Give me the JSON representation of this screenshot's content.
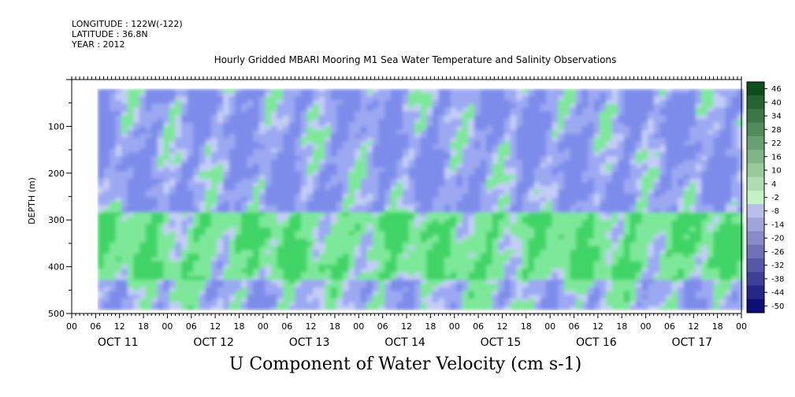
{
  "header": {
    "longitude": "LONGITUDE : 122W(-122)",
    "latitude": "LATITUDE : 36.8N",
    "year": "YEAR : 2012"
  },
  "chart_data": {
    "type": "heatmap",
    "title": "Hourly Gridded MBARI Mooring M1 Sea Water Temperature and Salinity Observations",
    "bottom_title": "U Component of Water Velocity (cm s-1)",
    "ylabel": "DEPTH (m)",
    "ylim": [
      500,
      0
    ],
    "y_ticks": [
      100,
      200,
      300,
      400,
      500
    ],
    "data_depth_range": [
      20,
      490
    ],
    "x_range_hours": [
      0,
      168
    ],
    "x_hour_labels": [
      "00",
      "06",
      "12",
      "18",
      "00",
      "06",
      "12",
      "18",
      "00",
      "06",
      "12",
      "18",
      "00",
      "06",
      "12",
      "18",
      "00",
      "06",
      "12",
      "18",
      "00",
      "06",
      "12",
      "18",
      "00",
      "06",
      "12",
      "18",
      "00"
    ],
    "day_labels": [
      "OCT 11",
      "OCT 12",
      "OCT 13",
      "OCT 14",
      "OCT 15",
      "OCT 16",
      "OCT 17"
    ],
    "colorbar": {
      "levels": [
        "46",
        "40",
        "34",
        "28",
        "22",
        "16",
        "10",
        "4",
        "-2",
        "-8",
        "-14",
        "-20",
        "-26",
        "-32",
        "-38",
        "-44",
        "-50"
      ],
      "min": -50,
      "max": 50
    },
    "pattern_summary": [
      {
        "depth_range": [
          20,
          280
        ],
        "sign": "negative",
        "value_cm_s": -10
      },
      {
        "depth_range": [
          280,
          420
        ],
        "sign": "positive",
        "value_cm_s": 10
      },
      {
        "depth_range": [
          420,
          490
        ],
        "sign": "mixed",
        "value_cm_s": -4
      }
    ]
  },
  "colors": {
    "positive": "#5ee07a",
    "negative": "#8f9cf0",
    "near_zero": "#c8d4f5"
  }
}
